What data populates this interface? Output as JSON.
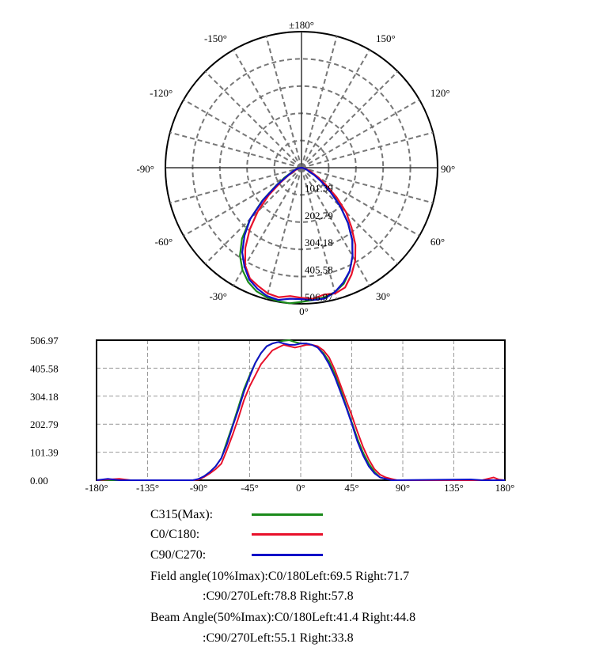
{
  "chart_data": [
    {
      "type": "polar",
      "angle_labels": [
        {
          "deg": 180,
          "text": "±180°"
        },
        {
          "deg": 150,
          "text": "150°"
        },
        {
          "deg": -150,
          "text": "-150°"
        },
        {
          "deg": 120,
          "text": "120°"
        },
        {
          "deg": -120,
          "text": "-120°"
        },
        {
          "deg": 90,
          "text": "90°"
        },
        {
          "deg": -90,
          "text": "-90°"
        },
        {
          "deg": 60,
          "text": "60°"
        },
        {
          "deg": -60,
          "text": "-60°"
        },
        {
          "deg": 30,
          "text": "30°"
        },
        {
          "deg": -30,
          "text": "-30°"
        },
        {
          "deg": 0,
          "text": "0°"
        }
      ],
      "radial_ticks": [
        "101.39",
        "202.79",
        "304.18",
        "405.58",
        "506.97"
      ],
      "rmax": 506.97,
      "series": [
        {
          "name": "C315(Max)",
          "color": "#1a8a1a",
          "points": [
            [
              -90,
              0
            ],
            [
              -80,
              12
            ],
            [
              -70,
              28
            ],
            [
              -60,
              70
            ],
            [
              -55,
              115
            ],
            [
              -50,
              190
            ],
            [
              -45,
              270
            ],
            [
              -40,
              345
            ],
            [
              -35,
              400
            ],
            [
              -30,
              440
            ],
            [
              -25,
              470
            ],
            [
              -20,
              490
            ],
            [
              -15,
              500
            ],
            [
              -10,
              505
            ],
            [
              -5,
              507
            ],
            [
              0,
              500
            ],
            [
              5,
              495
            ],
            [
              10,
              490
            ],
            [
              15,
              480
            ],
            [
              20,
              460
            ],
            [
              25,
              425
            ],
            [
              30,
              380
            ],
            [
              35,
              330
            ],
            [
              40,
              270
            ],
            [
              45,
              205
            ],
            [
              50,
              150
            ],
            [
              55,
              100
            ],
            [
              60,
              65
            ],
            [
              70,
              25
            ],
            [
              80,
              8
            ],
            [
              90,
              0
            ]
          ]
        },
        {
          "name": "C0/C180",
          "color": "#e8102a",
          "points": [
            [
              -90,
              0
            ],
            [
              -80,
              10
            ],
            [
              -70,
              22
            ],
            [
              -60,
              55
            ],
            [
              -55,
              95
            ],
            [
              -50,
              160
            ],
            [
              -45,
              230
            ],
            [
              -40,
              300
            ],
            [
              -35,
              365
            ],
            [
              -30,
              420
            ],
            [
              -25,
              455
            ],
            [
              -20,
              470
            ],
            [
              -15,
              485
            ],
            [
              -10,
              490
            ],
            [
              -5,
              480
            ],
            [
              0,
              485
            ],
            [
              5,
              490
            ],
            [
              10,
              480
            ],
            [
              15,
              485
            ],
            [
              20,
              475
            ],
            [
              25,
              440
            ],
            [
              30,
              400
            ],
            [
              35,
              350
            ],
            [
              40,
              290
            ],
            [
              45,
              235
            ],
            [
              50,
              170
            ],
            [
              55,
              110
            ],
            [
              60,
              70
            ],
            [
              70,
              30
            ],
            [
              80,
              8
            ],
            [
              90,
              0
            ]
          ]
        },
        {
          "name": "C90/C270",
          "color": "#1010c8",
          "points": [
            [
              -90,
              0
            ],
            [
              -80,
              12
            ],
            [
              -70,
              30
            ],
            [
              -60,
              60
            ],
            [
              -55,
              110
            ],
            [
              -50,
              185
            ],
            [
              -45,
              270
            ],
            [
              -40,
              330
            ],
            [
              -35,
              385
            ],
            [
              -30,
              425
            ],
            [
              -25,
              460
            ],
            [
              -20,
              480
            ],
            [
              -15,
              495
            ],
            [
              -10,
              500
            ],
            [
              -5,
              490
            ],
            [
              0,
              490
            ],
            [
              5,
              495
            ],
            [
              10,
              495
            ],
            [
              15,
              480
            ],
            [
              20,
              455
            ],
            [
              25,
              425
            ],
            [
              30,
              380
            ],
            [
              35,
              330
            ],
            [
              40,
              270
            ],
            [
              45,
              205
            ],
            [
              50,
              140
            ],
            [
              55,
              90
            ],
            [
              60,
              55
            ],
            [
              70,
              20
            ],
            [
              80,
              5
            ],
            [
              90,
              0
            ]
          ]
        }
      ]
    },
    {
      "type": "line",
      "ylim": [
        0,
        506.97
      ],
      "xlim": [
        -180,
        180
      ],
      "y_ticks": [
        "506.97",
        "405.58",
        "304.18",
        "202.79",
        "101.39",
        "0.00"
      ],
      "x_ticks": [
        "-180°",
        "-135°",
        "-90°",
        "-45°",
        "0°",
        "45°",
        "90°",
        "135°",
        "180°"
      ],
      "grid": true,
      "series": [
        {
          "name": "C315(Max)",
          "color": "#1a8a1a",
          "points": [
            [
              -180,
              0
            ],
            [
              -95,
              0
            ],
            [
              -90,
              2
            ],
            [
              -85,
              15
            ],
            [
              -80,
              30
            ],
            [
              -75,
              50
            ],
            [
              -70,
              80
            ],
            [
              -65,
              140
            ],
            [
              -60,
              200
            ],
            [
              -55,
              265
            ],
            [
              -50,
              330
            ],
            [
              -45,
              380
            ],
            [
              -40,
              425
            ],
            [
              -35,
              460
            ],
            [
              -30,
              485
            ],
            [
              -25,
              495
            ],
            [
              -20,
              500
            ],
            [
              -15,
              505
            ],
            [
              -10,
              507
            ],
            [
              -5,
              500
            ],
            [
              0,
              495
            ],
            [
              5,
              495
            ],
            [
              10,
              490
            ],
            [
              15,
              480
            ],
            [
              20,
              460
            ],
            [
              25,
              430
            ],
            [
              30,
              385
            ],
            [
              35,
              330
            ],
            [
              40,
              270
            ],
            [
              45,
              210
            ],
            [
              50,
              150
            ],
            [
              55,
              100
            ],
            [
              60,
              60
            ],
            [
              65,
              30
            ],
            [
              70,
              10
            ],
            [
              75,
              5
            ],
            [
              80,
              0
            ],
            [
              180,
              0
            ]
          ]
        },
        {
          "name": "C0/C180",
          "color": "#e8102a",
          "points": [
            [
              -180,
              0
            ],
            [
              -160,
              5
            ],
            [
              -150,
              0
            ],
            [
              -95,
              0
            ],
            [
              -90,
              2
            ],
            [
              -85,
              12
            ],
            [
              -80,
              25
            ],
            [
              -75,
              40
            ],
            [
              -70,
              60
            ],
            [
              -65,
              110
            ],
            [
              -60,
              165
            ],
            [
              -55,
              225
            ],
            [
              -50,
              290
            ],
            [
              -45,
              340
            ],
            [
              -40,
              380
            ],
            [
              -35,
              420
            ],
            [
              -30,
              445
            ],
            [
              -25,
              470
            ],
            [
              -20,
              480
            ],
            [
              -15,
              490
            ],
            [
              -10,
              485
            ],
            [
              -5,
              480
            ],
            [
              0,
              485
            ],
            [
              5,
              490
            ],
            [
              10,
              490
            ],
            [
              15,
              485
            ],
            [
              20,
              470
            ],
            [
              25,
              445
            ],
            [
              30,
              400
            ],
            [
              35,
              345
            ],
            [
              40,
              290
            ],
            [
              45,
              235
            ],
            [
              50,
              175
            ],
            [
              55,
              120
            ],
            [
              60,
              75
            ],
            [
              65,
              40
            ],
            [
              70,
              20
            ],
            [
              75,
              10
            ],
            [
              80,
              5
            ],
            [
              85,
              0
            ],
            [
              160,
              0
            ],
            [
              170,
              10
            ],
            [
              175,
              2
            ],
            [
              180,
              0
            ]
          ]
        },
        {
          "name": "C90/C270",
          "color": "#1010c8",
          "points": [
            [
              -180,
              0
            ],
            [
              -170,
              5
            ],
            [
              -160,
              0
            ],
            [
              -95,
              0
            ],
            [
              -90,
              5
            ],
            [
              -85,
              15
            ],
            [
              -80,
              30
            ],
            [
              -75,
              50
            ],
            [
              -70,
              80
            ],
            [
              -65,
              130
            ],
            [
              -60,
              195
            ],
            [
              -55,
              255
            ],
            [
              -50,
              320
            ],
            [
              -45,
              375
            ],
            [
              -40,
              425
            ],
            [
              -35,
              460
            ],
            [
              -30,
              485
            ],
            [
              -25,
              495
            ],
            [
              -20,
              500
            ],
            [
              -15,
              495
            ],
            [
              -10,
              490
            ],
            [
              -5,
              490
            ],
            [
              0,
              495
            ],
            [
              5,
              495
            ],
            [
              10,
              490
            ],
            [
              15,
              480
            ],
            [
              20,
              455
            ],
            [
              25,
              420
            ],
            [
              30,
              375
            ],
            [
              35,
              320
            ],
            [
              40,
              265
            ],
            [
              45,
              205
            ],
            [
              50,
              140
            ],
            [
              55,
              90
            ],
            [
              60,
              50
            ],
            [
              65,
              25
            ],
            [
              70,
              10
            ],
            [
              75,
              5
            ],
            [
              80,
              0
            ],
            [
              150,
              3
            ],
            [
              160,
              0
            ],
            [
              180,
              0
            ]
          ]
        }
      ]
    }
  ],
  "legend": [
    {
      "label": "C315(Max):",
      "color": "#1a8a1a"
    },
    {
      "label": "C0/C180:",
      "color": "#e8102a"
    },
    {
      "label": "C90/C270:",
      "color": "#1010c8"
    }
  ],
  "info": {
    "field_line1": "Field angle(10%Imax):C0/180Left:69.5 Right:71.7",
    "field_line2": ":C90/270Left:78.8 Right:57.8",
    "beam_line1": "Beam Angle(50%Imax):C0/180Left:41.4 Right:44.8",
    "beam_line2": ":C90/270Left:55.1 Right:33.8"
  }
}
